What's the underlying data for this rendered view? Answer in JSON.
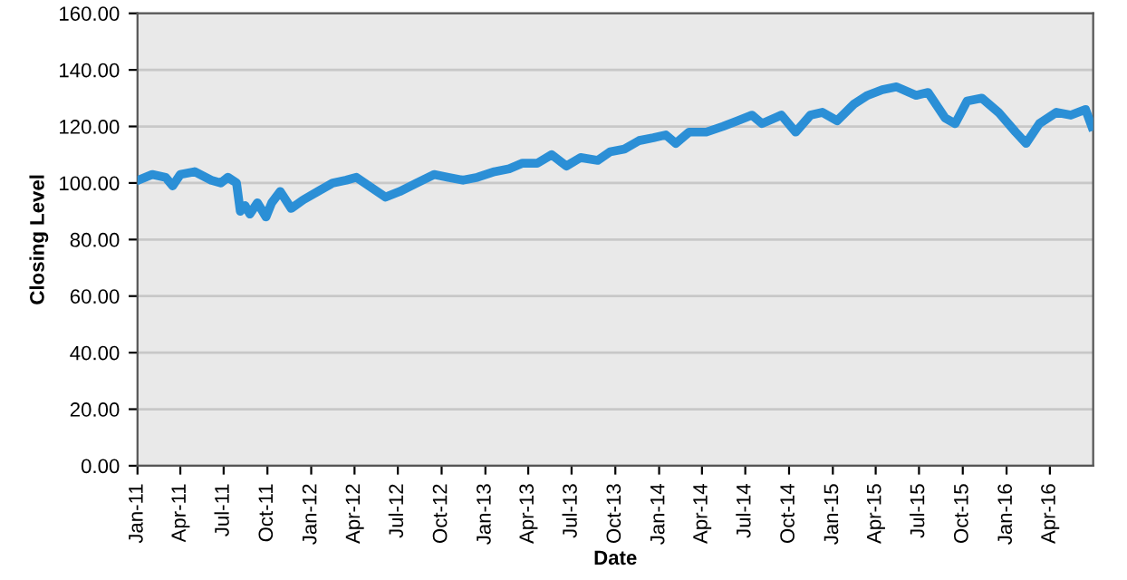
{
  "chart_data": {
    "type": "line",
    "xlabel": "Date",
    "ylabel": "Closing Level",
    "x": [
      "2011-01-03",
      "2011-02-01",
      "2011-03-01",
      "2011-03-16",
      "2011-04-01",
      "2011-05-01",
      "2011-06-05",
      "2011-06-25",
      "2011-07-10",
      "2011-07-28",
      "2011-08-05",
      "2011-08-15",
      "2011-08-25",
      "2011-09-10",
      "2011-09-28",
      "2011-10-10",
      "2011-10-28",
      "2011-11-20",
      "2011-12-15",
      "2012-01-15",
      "2012-02-15",
      "2012-03-15",
      "2012-04-05",
      "2012-05-10",
      "2012-06-05",
      "2012-07-05",
      "2012-08-10",
      "2012-09-15",
      "2012-10-15",
      "2012-11-15",
      "2012-12-15",
      "2013-01-20",
      "2013-02-20",
      "2013-03-20",
      "2013-04-20",
      "2013-05-20",
      "2013-06-20",
      "2013-07-20",
      "2013-08-25",
      "2013-09-20",
      "2013-10-20",
      "2013-11-20",
      "2013-12-20",
      "2014-01-15",
      "2014-02-05",
      "2014-03-05",
      "2014-04-10",
      "2014-05-15",
      "2014-06-15",
      "2014-07-15",
      "2014-08-05",
      "2014-09-15",
      "2014-10-15",
      "2014-11-15",
      "2014-12-10",
      "2015-01-10",
      "2015-02-15",
      "2015-03-15",
      "2015-04-15",
      "2015-05-15",
      "2015-06-25",
      "2015-07-20",
      "2015-08-25",
      "2015-09-15",
      "2015-10-10",
      "2015-11-10",
      "2015-12-15",
      "2016-01-20",
      "2016-02-11",
      "2016-03-10",
      "2016-04-15",
      "2016-05-15",
      "2016-06-15",
      "2016-06-28"
    ],
    "series": [
      {
        "color": "#2b8fd6",
        "values": [
          101,
          103,
          102,
          99,
          103,
          104,
          101,
          100,
          102,
          100,
          90,
          92,
          89,
          93,
          88,
          93,
          97,
          91,
          94,
          97,
          100,
          101,
          102,
          98,
          95,
          97,
          100,
          103,
          102,
          101,
          102,
          104,
          105,
          107,
          107,
          110,
          106,
          109,
          108,
          111,
          112,
          115,
          116,
          117,
          114,
          118,
          118,
          120,
          122,
          124,
          121,
          124,
          118,
          124,
          125,
          122,
          128,
          131,
          133,
          134,
          131,
          132,
          123,
          121,
          129,
          130,
          125,
          118,
          114,
          121,
          125,
          124,
          126,
          120
        ]
      }
    ],
    "xlim": [
      "2011-01-01",
      "2016-07-01"
    ],
    "xticks": [
      {
        "value": "2011-01-01",
        "label": "Jan-11"
      },
      {
        "value": "2011-04-01",
        "label": "Apr-11"
      },
      {
        "value": "2011-07-01",
        "label": "Jul-11"
      },
      {
        "value": "2011-10-01",
        "label": "Oct-11"
      },
      {
        "value": "2012-01-01",
        "label": "Jan-12"
      },
      {
        "value": "2012-04-01",
        "label": "Apr-12"
      },
      {
        "value": "2012-07-01",
        "label": "Jul-12"
      },
      {
        "value": "2012-10-01",
        "label": "Oct-12"
      },
      {
        "value": "2013-01-01",
        "label": "Jan-13"
      },
      {
        "value": "2013-04-01",
        "label": "Apr-13"
      },
      {
        "value": "2013-07-01",
        "label": "Jul-13"
      },
      {
        "value": "2013-10-01",
        "label": "Oct-13"
      },
      {
        "value": "2014-01-01",
        "label": "Jan-14"
      },
      {
        "value": "2014-04-01",
        "label": "Apr-14"
      },
      {
        "value": "2014-07-01",
        "label": "Jul-14"
      },
      {
        "value": "2014-10-01",
        "label": "Oct-14"
      },
      {
        "value": "2015-01-01",
        "label": "Jan-15"
      },
      {
        "value": "2015-04-01",
        "label": "Apr-15"
      },
      {
        "value": "2015-07-01",
        "label": "Jul-15"
      },
      {
        "value": "2015-10-01",
        "label": "Oct-15"
      },
      {
        "value": "2016-01-01",
        "label": "Jan-16"
      },
      {
        "value": "2016-04-01",
        "label": "Apr-16"
      }
    ],
    "ylim": [
      0,
      160
    ],
    "yticks": [
      {
        "value": 0,
        "label": "0.00"
      },
      {
        "value": 20,
        "label": "20.00"
      },
      {
        "value": 40,
        "label": "40.00"
      },
      {
        "value": 60,
        "label": "60.00"
      },
      {
        "value": 80,
        "label": "80.00"
      },
      {
        "value": 100,
        "label": "100.00"
      },
      {
        "value": 120,
        "label": "120.00"
      },
      {
        "value": 140,
        "label": "140.00"
      },
      {
        "value": 160,
        "label": "160.00"
      }
    ],
    "grid": "y",
    "marker": "none",
    "line_style": "solid"
  }
}
